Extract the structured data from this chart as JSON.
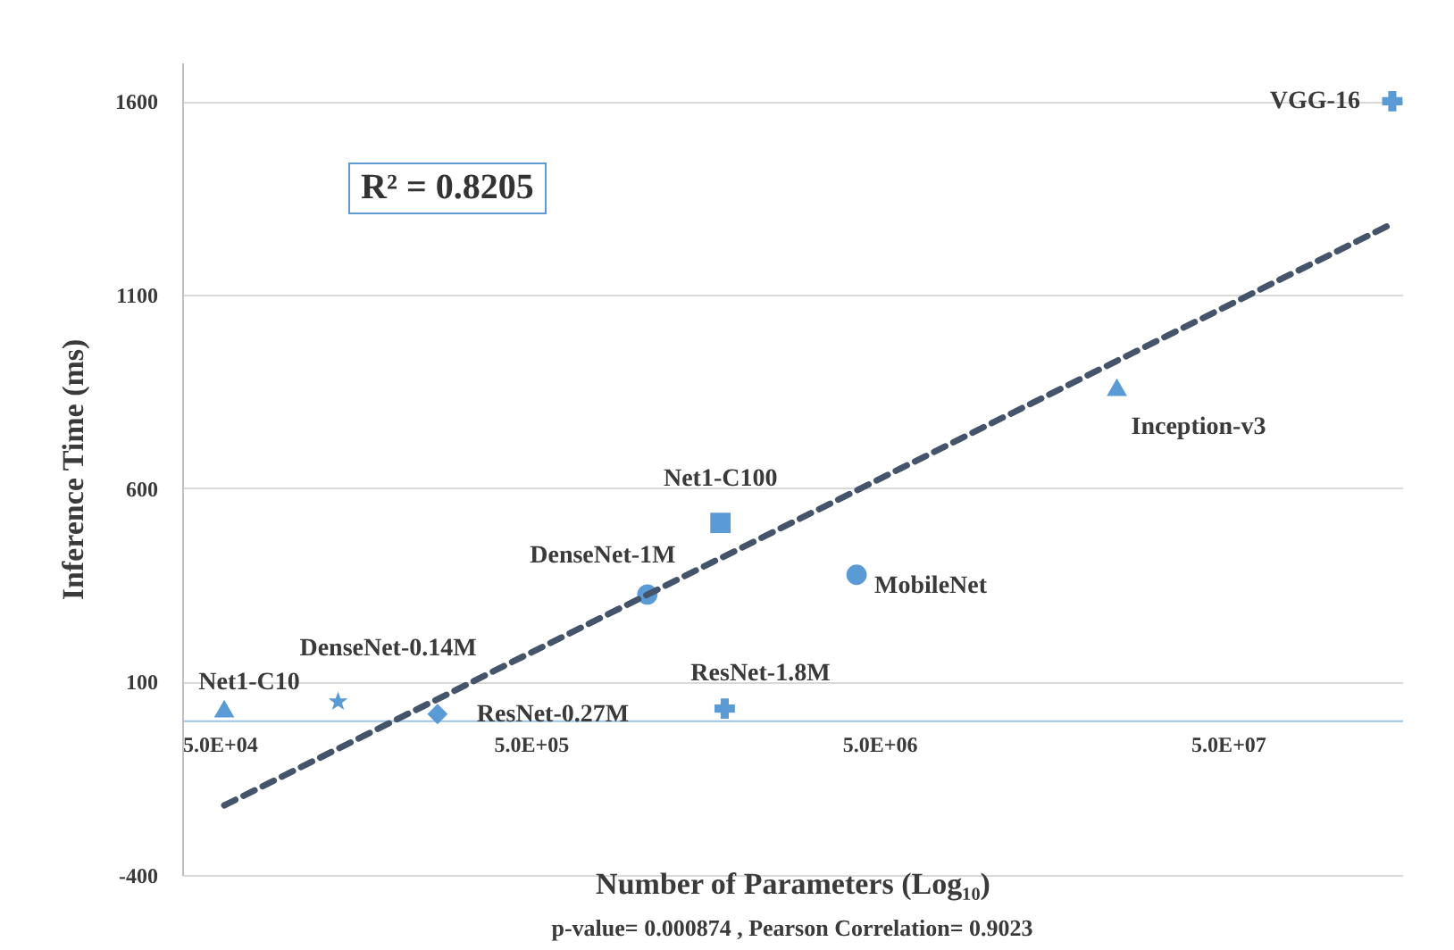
{
  "chart_data": {
    "type": "scatter",
    "xlabel": "Number of Parameters (Log₁₀)",
    "ylabel": "Inference Time (ms)",
    "log": "x",
    "xlim": [
      50000,
      158000000
    ],
    "ylim": [
      -400,
      1700
    ],
    "xticks": [
      {
        "value": 50000,
        "label": "5.0E+04"
      },
      {
        "value": 500000,
        "label": "5.0E+05"
      },
      {
        "value": 5000000,
        "label": "5.0E+06"
      },
      {
        "value": 50000000,
        "label": "5.0E+07"
      }
    ],
    "yticks": [
      -400,
      100,
      600,
      1100,
      1600
    ],
    "grid": "y",
    "series": [
      {
        "name": "Net1-C10",
        "color": "#5b9bd5",
        "marker": "triangle",
        "x": [
          66000
        ],
        "values": [
          30
        ]
      },
      {
        "name": "DenseNet-0.14M",
        "color": "#5b9bd5",
        "marker": "star",
        "x": [
          140000
        ],
        "values": [
          48
        ]
      },
      {
        "name": "ResNet-0.27M",
        "color": "#5b9bd5",
        "marker": "diamond",
        "x": [
          270000
        ],
        "values": [
          16
        ]
      },
      {
        "name": "DenseNet-1M",
        "color": "#5b9bd5",
        "marker": "circle",
        "x": [
          1080000
        ],
        "values": [
          325
        ]
      },
      {
        "name": "Net1-C100",
        "color": "#5b9bd5",
        "marker": "square",
        "x": [
          1750000
        ],
        "values": [
          510
        ]
      },
      {
        "name": "ResNet-1.8M",
        "color": "#5b9bd5",
        "marker": "cross",
        "x": [
          1800000
        ],
        "values": [
          30
        ]
      },
      {
        "name": "MobileNet",
        "color": "#5b9bd5",
        "marker": "circle",
        "x": [
          4300000
        ],
        "values": [
          376
        ]
      },
      {
        "name": "Inception-v3",
        "color": "#5b9bd5",
        "marker": "triangle",
        "x": [
          24000000
        ],
        "values": [
          861
        ]
      },
      {
        "name": "VGG-16",
        "color": "#5b9bd5",
        "marker": "cross",
        "x": [
          148000000
        ],
        "values": [
          1600
        ]
      },
      {
        "type": "line",
        "color": "#44546a",
        "line_style": "dashed",
        "marker": "none",
        "x": [
          66000,
          150000000
        ],
        "values": [
          -220,
          1286
        ]
      }
    ],
    "annotations": [
      "R² = 0.8205",
      "p-value= 0.000874 , Pearson Correlation= 0.9023"
    ]
  }
}
